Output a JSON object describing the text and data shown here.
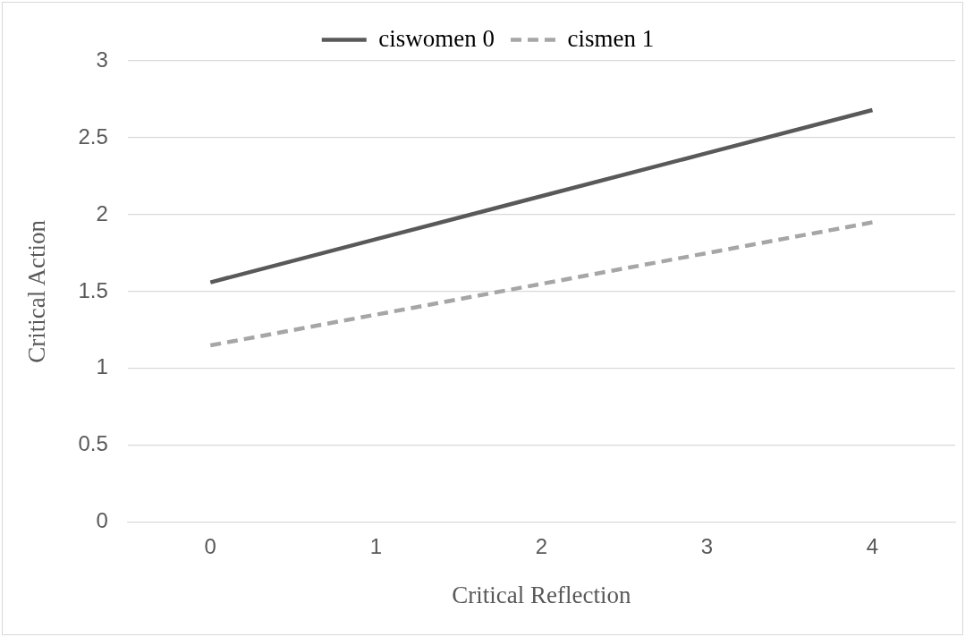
{
  "chart_data": {
    "type": "line",
    "xlabel": "Critical Reflection",
    "ylabel": "Critical Action",
    "categories": [
      "0",
      "1",
      "2",
      "3",
      "4"
    ],
    "series": [
      {
        "name": "ciswomen 0",
        "color": "#595959",
        "line_style": "solid",
        "values": [
          1.56,
          1.84,
          2.12,
          2.4,
          2.68
        ]
      },
      {
        "name": "cismen 1",
        "color": "#a6a6a6",
        "line_style": "dashed",
        "values": [
          1.15,
          1.35,
          1.55,
          1.75,
          1.95
        ]
      }
    ],
    "ylim": [
      0,
      3
    ],
    "yticks": [
      0,
      0.5,
      1,
      1.5,
      2,
      2.5,
      3
    ],
    "grid": "y",
    "legend": "top",
    "marker": "none"
  }
}
